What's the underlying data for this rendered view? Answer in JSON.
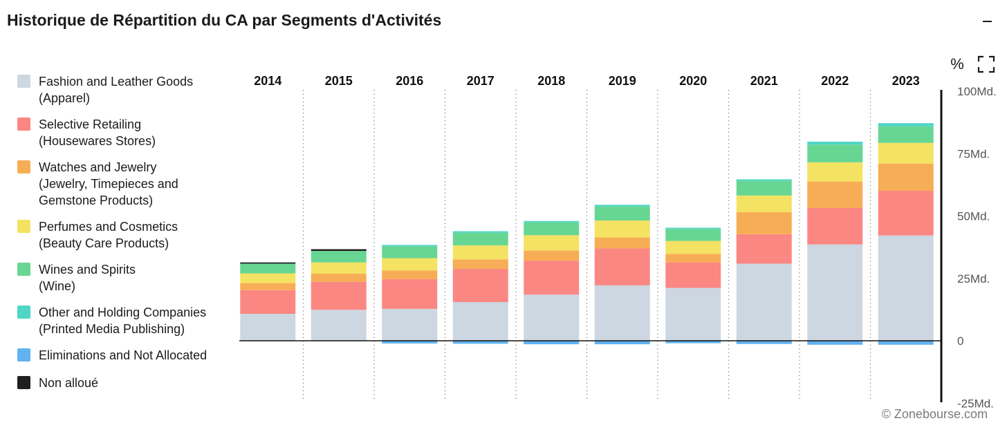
{
  "title": "Historique de Répartition du CA par Segments d'Activités",
  "toolbar": {
    "minimize_icon": "minimize-icon",
    "percent_label": "%",
    "fullscreen_icon": "fullscreen-icon"
  },
  "watermark": "© Zonebourse.com",
  "legend": [
    {
      "label": "Fashion and Leather Goods\n(Apparel)",
      "color": "#cdd7e1"
    },
    {
      "label": "Selective Retailing\n(Housewares Stores)",
      "color": "#fb8783"
    },
    {
      "label": "Watches and Jewelry\n(Jewelry, Timepieces and\nGemstone Products)",
      "color": "#f7ad55"
    },
    {
      "label": "Perfumes and Cosmetics\n(Beauty Care Products)",
      "color": "#f4e262"
    },
    {
      "label": "Wines and Spirits\n(Wine)",
      "color": "#68d693"
    },
    {
      "label": "Other and Holding Companies\n(Printed Media Publishing)",
      "color": "#4fd6c6"
    },
    {
      "label": "Eliminations and Not Allocated",
      "color": "#61b2f1"
    },
    {
      "label": "Non alloué",
      "color": "#1f1f1f"
    }
  ],
  "chart_data": {
    "type": "bar",
    "stacked": true,
    "categories": [
      "2014",
      "2015",
      "2016",
      "2017",
      "2018",
      "2019",
      "2020",
      "2021",
      "2022",
      "2023"
    ],
    "yticks": [
      {
        "value": 100,
        "label": "100Md."
      },
      {
        "value": 75,
        "label": "75Md."
      },
      {
        "value": 50,
        "label": "50Md."
      },
      {
        "value": 25,
        "label": "25Md."
      },
      {
        "value": 0,
        "label": "0"
      },
      {
        "value": -25,
        "label": "-25Md."
      }
    ],
    "ylim": [
      -25,
      100
    ],
    "grid": "vertical dotted",
    "legend_position": "left",
    "series": [
      {
        "name": "Fashion and Leather Goods (Apparel)",
        "color": "#cdd7e1",
        "values": [
          10.8,
          12.4,
          12.8,
          15.5,
          18.5,
          22.2,
          21.2,
          30.9,
          38.6,
          42.2
        ]
      },
      {
        "name": "Selective Retailing (Housewares Stores)",
        "color": "#fb8783",
        "values": [
          9.5,
          11.2,
          11.9,
          13.3,
          13.6,
          14.8,
          10.2,
          11.8,
          14.6,
          17.9
        ]
      },
      {
        "name": "Watches and Jewelry (Jewelry, Timepieces and Gemstone Products)",
        "color": "#f7ad55",
        "values": [
          2.8,
          3.3,
          3.5,
          3.8,
          4.1,
          4.4,
          3.4,
          8.9,
          10.6,
          10.9
        ]
      },
      {
        "name": "Perfumes and Cosmetics (Beauty Care Products)",
        "color": "#f4e262",
        "values": [
          3.9,
          4.5,
          4.9,
          5.6,
          6.1,
          6.8,
          5.2,
          6.6,
          7.7,
          8.3
        ]
      },
      {
        "name": "Wines and Spirits (Wine)",
        "color": "#68d693",
        "values": [
          3.9,
          4.6,
          4.8,
          5.1,
          5.1,
          5.6,
          4.8,
          5.9,
          7.1,
          6.6
        ]
      },
      {
        "name": "Other and Holding Companies (Printed Media Publishing)",
        "color": "#4fd6c6",
        "values": [
          0.0,
          0.0,
          0.5,
          0.6,
          0.6,
          0.7,
          0.5,
          0.6,
          1.2,
          1.3
        ]
      },
      {
        "name": "Eliminations and Not Allocated",
        "color": "#61b2f1",
        "values": [
          0.0,
          0.0,
          -1.1,
          -1.2,
          -1.4,
          -1.4,
          -1.0,
          -1.3,
          -1.6,
          -1.6
        ]
      },
      {
        "name": "Non alloué",
        "color": "#1f1f1f",
        "values": [
          0.5,
          0.7,
          0.0,
          0.0,
          0.0,
          0.0,
          0.0,
          0.0,
          0.0,
          0.0
        ]
      }
    ]
  }
}
